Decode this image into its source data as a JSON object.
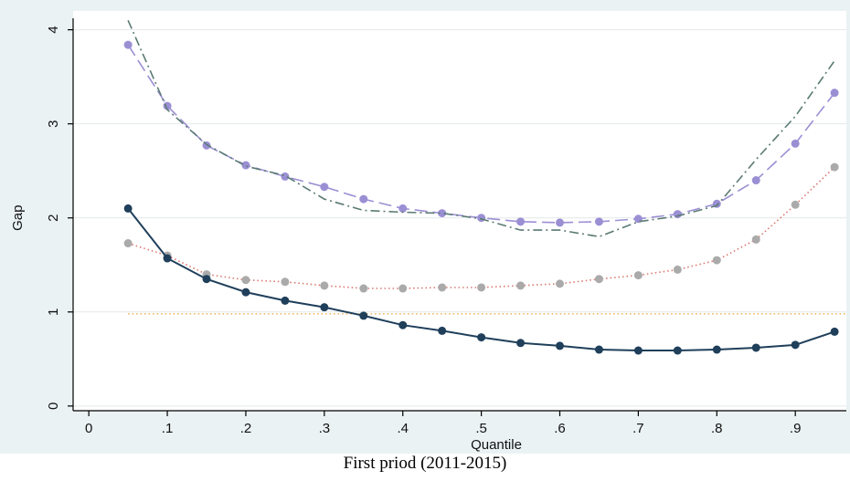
{
  "chart_data": {
    "type": "line",
    "caption": "First priod (2011-2015)",
    "xlabel": "Quantile",
    "ylabel": "Gap",
    "xlim": [
      -0.02,
      0.965
    ],
    "ylim": [
      -0.05,
      4.2
    ],
    "xticks": [
      0,
      0.1,
      0.2,
      0.3,
      0.4,
      0.5,
      0.6,
      0.7,
      0.8,
      0.9
    ],
    "xtick_labels": [
      "0",
      ".1",
      ".2",
      ".3",
      ".4",
      ".5",
      ".6",
      ".7",
      ".8",
      ".9"
    ],
    "yticks": [
      0,
      1,
      2,
      3,
      4
    ],
    "ytick_labels": [
      "0",
      "1",
      "2",
      "3",
      "4"
    ],
    "grid": true,
    "x": [
      0.05,
      0.1,
      0.15,
      0.2,
      0.25,
      0.3,
      0.35,
      0.4,
      0.45,
      0.5,
      0.55,
      0.6,
      0.65,
      0.7,
      0.75,
      0.8,
      0.85,
      0.9,
      0.95
    ],
    "series": [
      {
        "color": "#9b8fd4",
        "style": "long-dash",
        "markers": true,
        "values": [
          3.84,
          3.19,
          2.77,
          2.56,
          2.44,
          2.33,
          2.2,
          2.1,
          2.05,
          2.0,
          1.96,
          1.95,
          1.96,
          1.99,
          2.04,
          2.15,
          2.4,
          2.79,
          3.33
        ]
      },
      {
        "color": "#5a7a73",
        "style": "dash-dot",
        "markers": false,
        "values": [
          4.1,
          3.15,
          2.78,
          2.55,
          2.45,
          2.2,
          2.08,
          2.06,
          2.05,
          1.99,
          1.87,
          1.87,
          1.8,
          1.96,
          2.02,
          2.13,
          2.62,
          3.08,
          3.67
        ]
      },
      {
        "color": "#aaaaaa",
        "line_color": "#d9776e",
        "style": "dotted",
        "markers": true,
        "values": [
          1.73,
          1.6,
          1.4,
          1.34,
          1.32,
          1.28,
          1.25,
          1.25,
          1.26,
          1.26,
          1.28,
          1.3,
          1.35,
          1.39,
          1.45,
          1.55,
          1.77,
          2.14,
          2.54
        ]
      },
      {
        "color": "#1f3f5b",
        "style": "solid",
        "markers": true,
        "values": [
          2.1,
          1.57,
          1.35,
          1.21,
          1.12,
          1.05,
          0.96,
          0.86,
          0.8,
          0.73,
          0.67,
          0.64,
          0.6,
          0.59,
          0.59,
          0.6,
          0.62,
          0.65,
          0.79
        ]
      }
    ],
    "reference_line": {
      "y": 0.98,
      "color": "#e8a030",
      "style": "dotted"
    },
    "colors": {
      "panel_background": "#ffffff",
      "outer_background": "#eaf2f3",
      "grid": "#e4e9ea",
      "axis": "#000000"
    }
  }
}
